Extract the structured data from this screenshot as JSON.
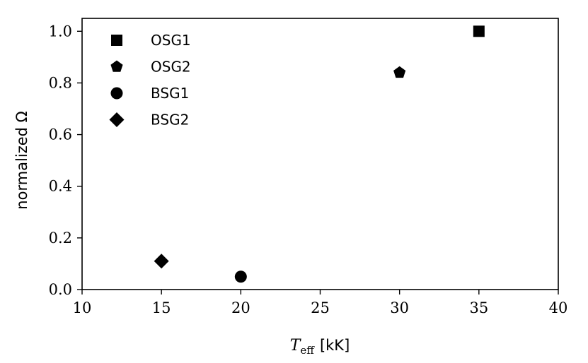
{
  "chart_data": {
    "type": "scatter",
    "xlabel": {
      "symbol": "T",
      "subscript": "eff",
      "unit": "[kK]"
    },
    "ylabel": "normalized Ω",
    "xlim": [
      10,
      40
    ],
    "ylim": [
      0,
      1.05
    ],
    "xticks": [
      "10",
      "15",
      "20",
      "25",
      "30",
      "35",
      "40"
    ],
    "yticks": [
      "0.0",
      "0.2",
      "0.4",
      "0.6",
      "0.8",
      "1.0"
    ],
    "grid": false,
    "legend_position": "top-left",
    "marker_color": "#000000",
    "series": [
      {
        "name": "OSG1",
        "marker": "square",
        "x": [
          35
        ],
        "y": [
          1.0
        ]
      },
      {
        "name": "OSG2",
        "marker": "pentagon",
        "x": [
          30
        ],
        "y": [
          0.84
        ]
      },
      {
        "name": "BSG1",
        "marker": "circle",
        "x": [
          20
        ],
        "y": [
          0.05
        ]
      },
      {
        "name": "BSG2",
        "marker": "diamond",
        "x": [
          15
        ],
        "y": [
          0.11
        ]
      }
    ]
  }
}
